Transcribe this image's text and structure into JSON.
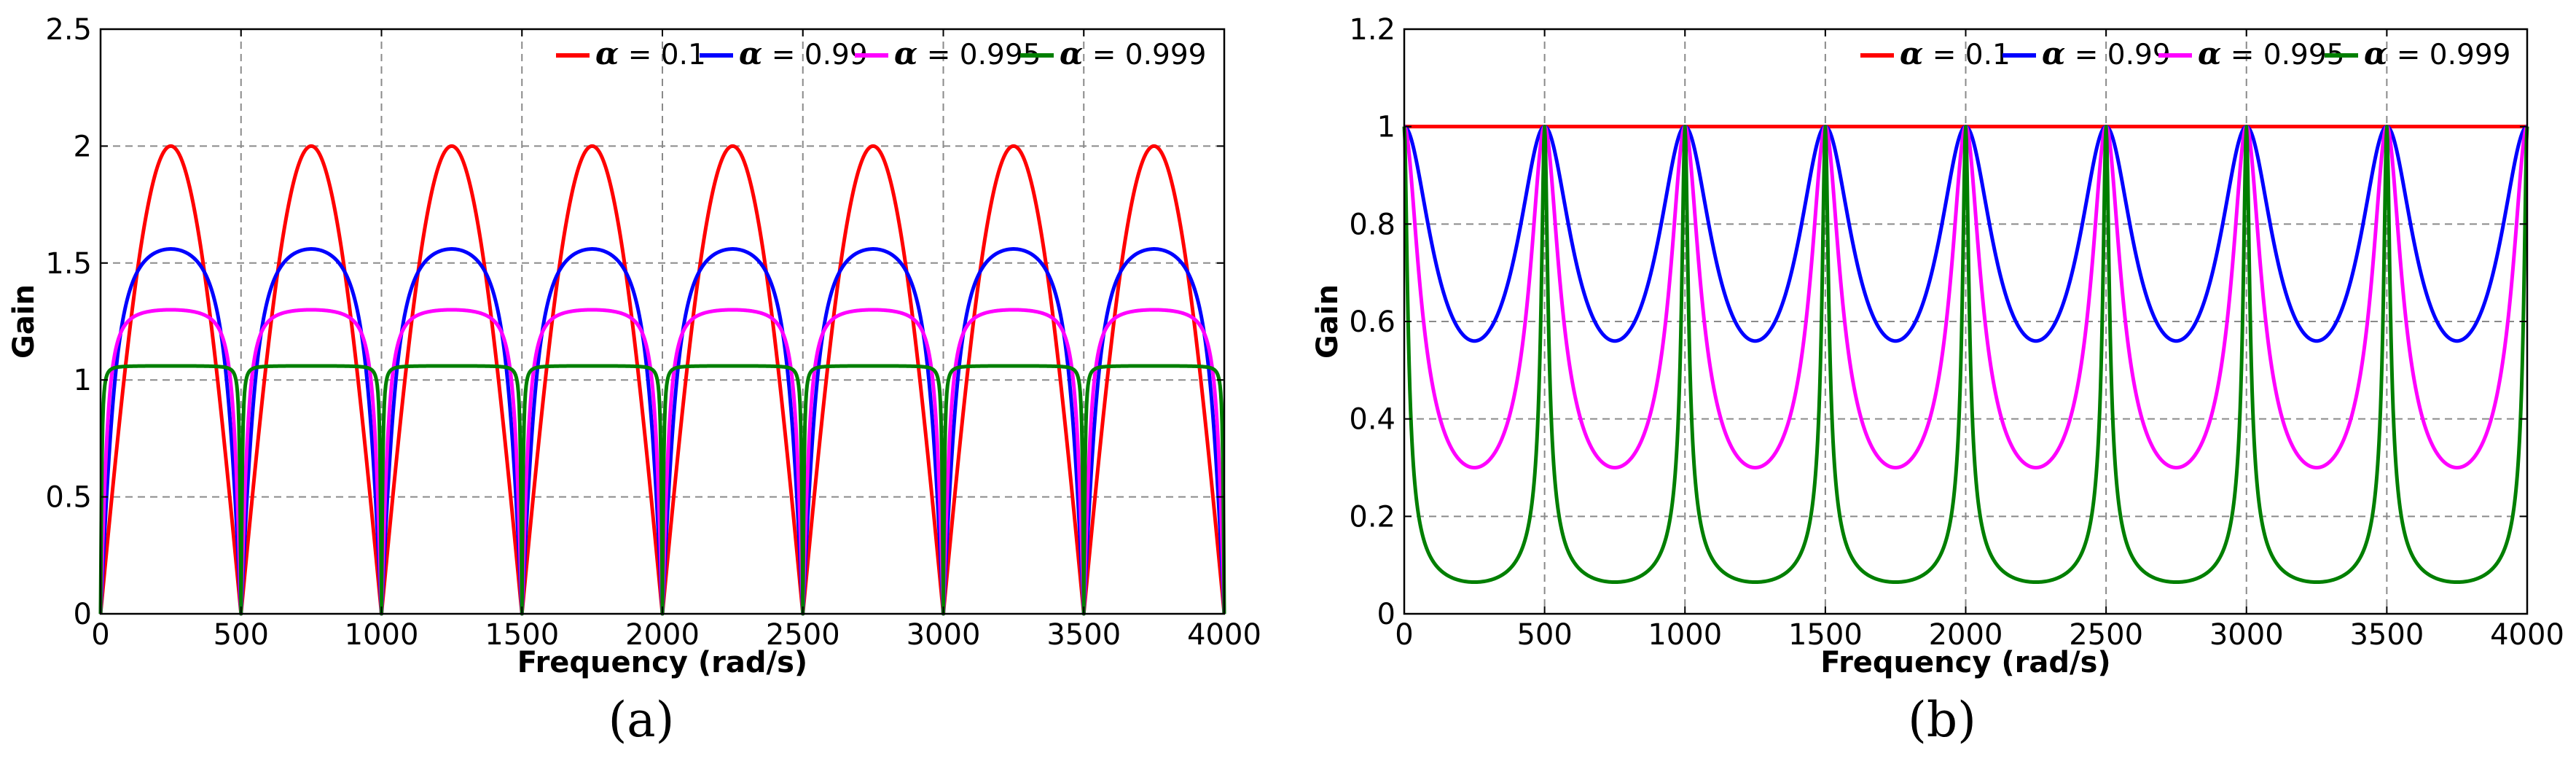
{
  "chart_data": [
    {
      "panel": "a",
      "type": "line",
      "caption": "(a)",
      "xlabel": "Frequency (rad/s)",
      "ylabel": "Gain",
      "xlim": [
        0,
        4000
      ],
      "ylim": [
        0,
        2.5
      ],
      "xticks": [
        0,
        500,
        1000,
        1500,
        2000,
        2500,
        3000,
        3500,
        4000
      ],
      "xtick_labels": [
        "0",
        "500",
        "1000",
        "1500",
        "2000",
        "2500",
        "3000",
        "3500",
        "4000"
      ],
      "yticks": [
        0,
        0.5,
        1,
        1.5,
        2,
        2.5
      ],
      "ytick_labels": [
        "0",
        "0.5",
        "1",
        "1.5",
        "2",
        "2.5"
      ],
      "grid": true,
      "legend_position": "top-right",
      "period": 500,
      "series": [
        {
          "name": "α = 0.1",
          "symbol": "α",
          "value_label": " = 0.1",
          "alpha": 0.1,
          "color": "#ff0000",
          "peak": 2.0,
          "notch": 0
        },
        {
          "name": "α = 0.99",
          "symbol": "α",
          "value_label": " = 0.99",
          "alpha": 0.99,
          "color": "#0000ff",
          "peak": 1.56,
          "notch": 0
        },
        {
          "name": "α = 0.995",
          "symbol": "α",
          "value_label": " = 0.995",
          "alpha": 0.995,
          "color": "#ff00ff",
          "peak": 1.3,
          "notch": 0
        },
        {
          "name": "α = 0.999",
          "symbol": "α",
          "value_label": " = 0.999",
          "alpha": 0.999,
          "color": "#007f00",
          "peak": 1.06,
          "notch": 0
        }
      ]
    },
    {
      "panel": "b",
      "type": "line",
      "caption": "(b)",
      "xlabel": "Frequency (rad/s)",
      "ylabel": "Gain",
      "xlim": [
        0,
        4000
      ],
      "ylim": [
        0,
        1.2
      ],
      "xticks": [
        0,
        500,
        1000,
        1500,
        2000,
        2500,
        3000,
        3500,
        4000
      ],
      "xtick_labels": [
        "0",
        "500",
        "1000",
        "1500",
        "2000",
        "2500",
        "3000",
        "3500",
        "4000"
      ],
      "yticks": [
        0,
        0.2,
        0.4,
        0.6,
        0.8,
        1,
        1.2
      ],
      "ytick_labels": [
        "0",
        "0.2",
        "0.4",
        "0.6",
        "0.8",
        "1",
        "1.2"
      ],
      "grid": true,
      "legend_position": "top-right",
      "period": 500,
      "series": [
        {
          "name": "α = 0.1",
          "symbol": "α",
          "value_label": " = 0.1",
          "alpha": 0.1,
          "color": "#ff0000",
          "peak": 1.0,
          "notch": 1.0
        },
        {
          "name": "α = 0.99",
          "symbol": "α",
          "value_label": " = 0.99",
          "alpha": 0.99,
          "color": "#0000ff",
          "peak": 1.0,
          "notch": 0.56
        },
        {
          "name": "α = 0.995",
          "symbol": "α",
          "value_label": " = 0.995",
          "alpha": 0.995,
          "color": "#ff00ff",
          "peak": 1.0,
          "notch": 0.3
        },
        {
          "name": "α = 0.999",
          "symbol": "α",
          "value_label": " = 0.999",
          "alpha": 0.999,
          "color": "#007f00",
          "peak": 1.0,
          "notch": 0.065
        }
      ]
    }
  ]
}
